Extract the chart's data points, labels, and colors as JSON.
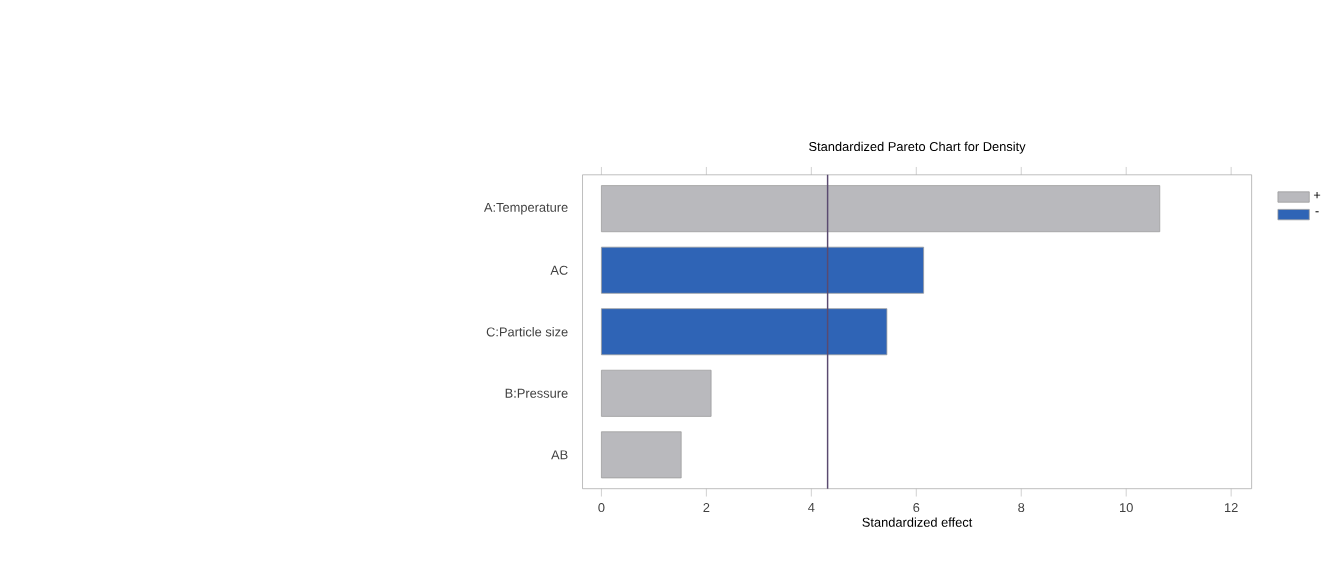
{
  "chart_data": {
    "type": "bar",
    "orientation": "horizontal",
    "title": "Standardized Pareto Chart for Density",
    "xlabel": "Standardized effect",
    "categories": [
      "A:Temperature",
      "AC",
      "C:Particle size",
      "B:Pressure",
      "AB"
    ],
    "series": [
      {
        "name": "+",
        "color": "#b9b9bd",
        "values": [
          10.64,
          null,
          null,
          2.09,
          1.52
        ]
      },
      {
        "name": "-",
        "color": "#2f64b6",
        "values": [
          null,
          6.14,
          5.44,
          null,
          null
        ]
      }
    ],
    "xlim": [
      -0.36,
      12.39
    ],
    "xticks": [
      0,
      2,
      4,
      6,
      8,
      10,
      12
    ],
    "ref_lines": [
      {
        "axis": "x",
        "value": 4.31,
        "color": "#5a4a70"
      }
    ],
    "legend": "right",
    "grid": false
  }
}
